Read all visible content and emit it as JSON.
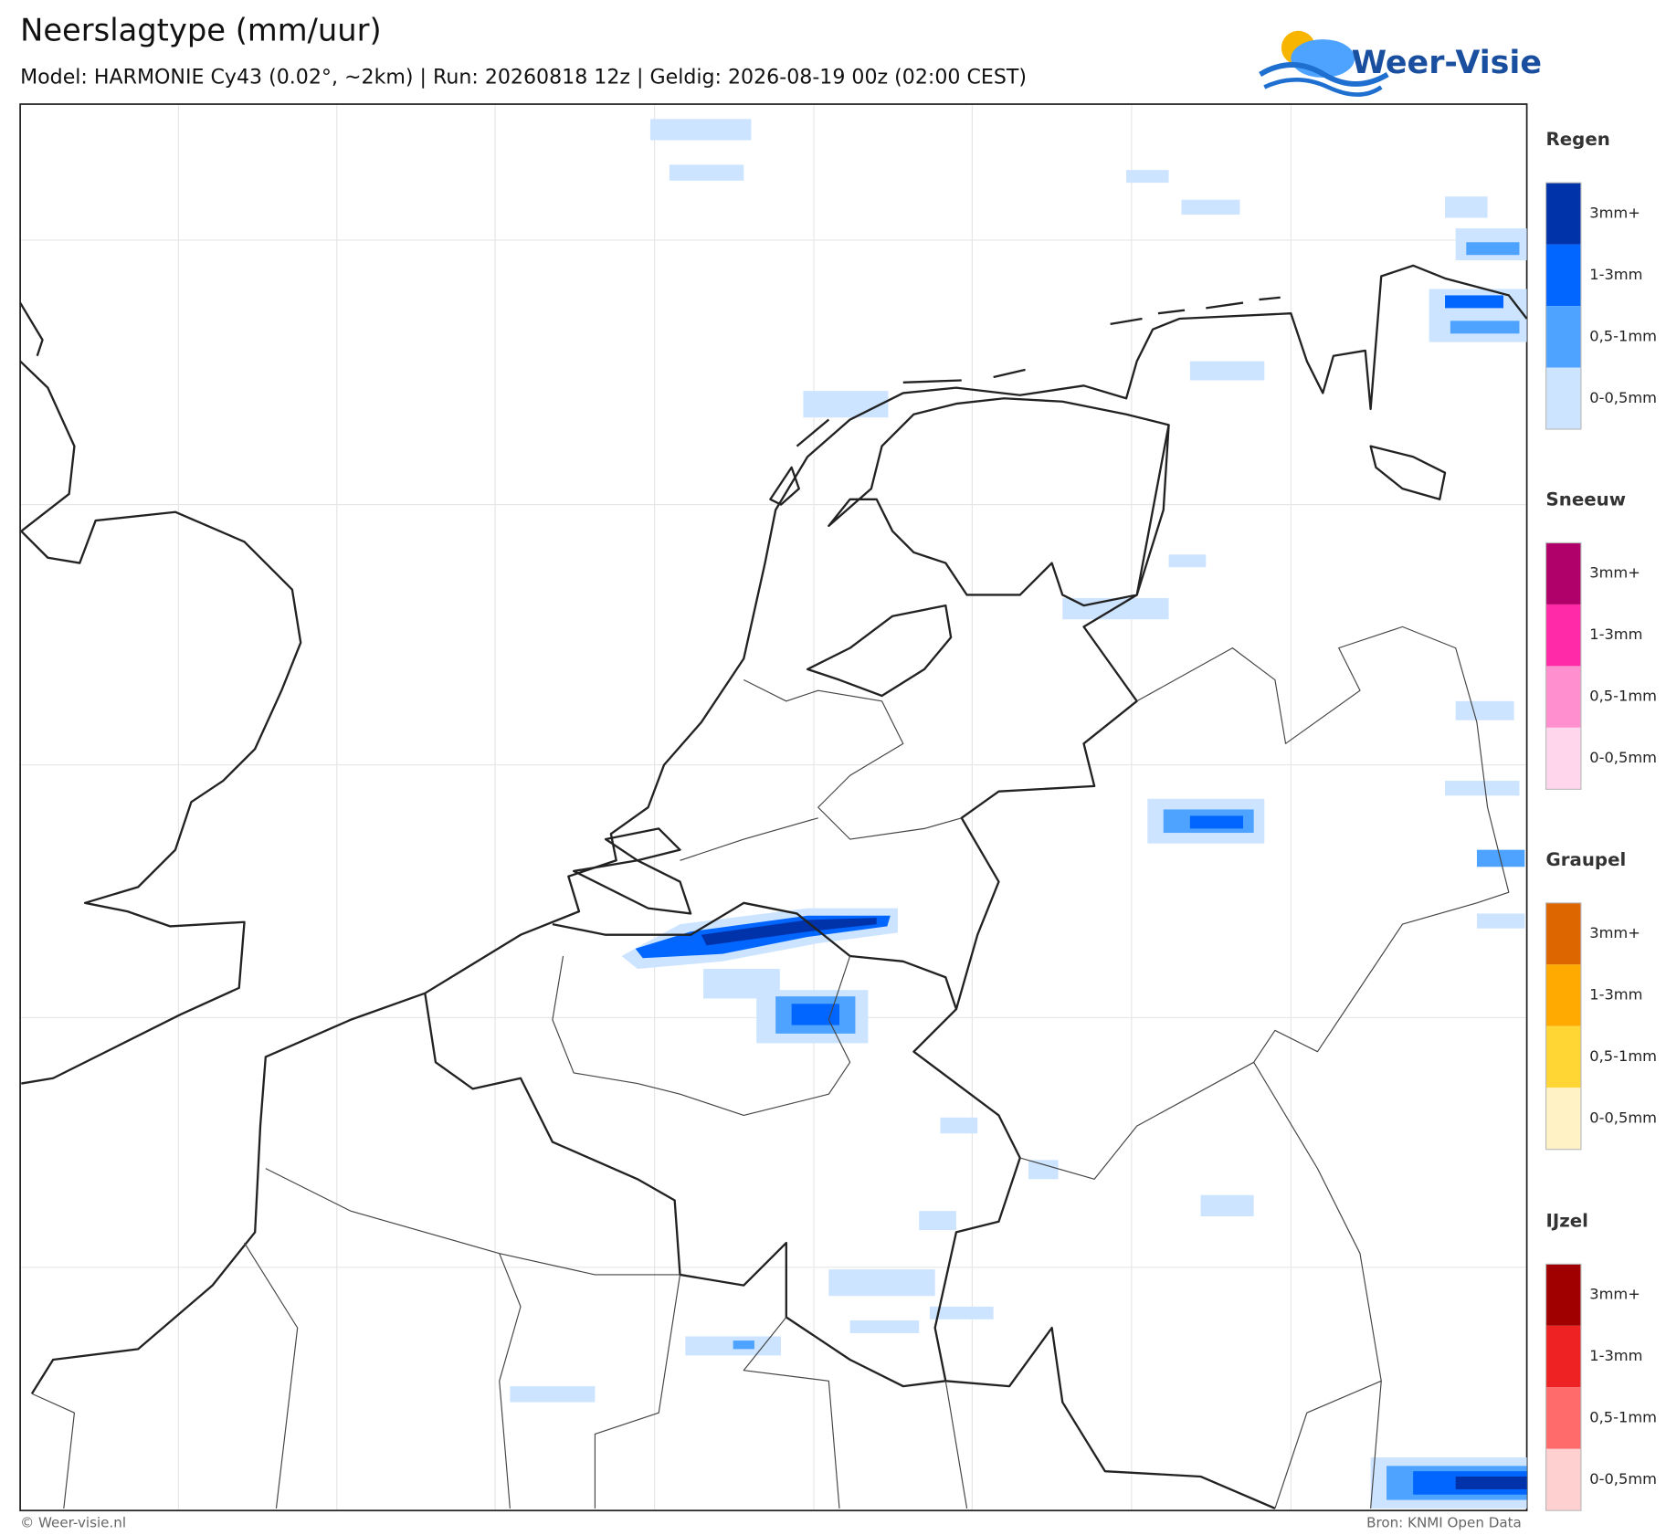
{
  "header": {
    "title": "Neerslagtype (mm/uur)",
    "subtitle": "Model: HARMONIE Cy43 (0.02°, ~2km)  |  Run: 20260818 12z  |  Geldig: 2026-08-19 00z (02:00 CEST)",
    "logo": "Weer-Visie"
  },
  "legend": [
    {
      "title": "Regen",
      "items": [
        {
          "label": "3mm+",
          "color": "#0033aa"
        },
        {
          "label": "1-3mm",
          "color": "#0066ff"
        },
        {
          "label": "0,5-1mm",
          "color": "#4da3ff"
        },
        {
          "label": "0-0,5mm",
          "color": "#cce4ff"
        }
      ]
    },
    {
      "title": "Sneeuw",
      "items": [
        {
          "label": "3mm+",
          "color": "#b0006a"
        },
        {
          "label": "1-3mm",
          "color": "#ff2aa8"
        },
        {
          "label": "0,5-1mm",
          "color": "#ff8fce"
        },
        {
          "label": "0-0,5mm",
          "color": "#ffd6ec"
        }
      ]
    },
    {
      "title": "Graupel",
      "items": [
        {
          "label": "3mm+",
          "color": "#dd6600"
        },
        {
          "label": "1-3mm",
          "color": "#ffaa00"
        },
        {
          "label": "0,5-1mm",
          "color": "#ffd633"
        },
        {
          "label": "0-0,5mm",
          "color": "#fff2c4"
        }
      ]
    },
    {
      "title": "IJzel",
      "items": [
        {
          "label": "3mm+",
          "color": "#a00000"
        },
        {
          "label": "1-3mm",
          "color": "#ee2222"
        },
        {
          "label": "0,5-1mm",
          "color": "#ff6b6b"
        },
        {
          "label": "0-0,5mm",
          "color": "#ffd0d0"
        }
      ]
    }
  ],
  "footer": {
    "left": "© Weer-visie.nl",
    "right": "Bron: KNMI Open Data"
  }
}
